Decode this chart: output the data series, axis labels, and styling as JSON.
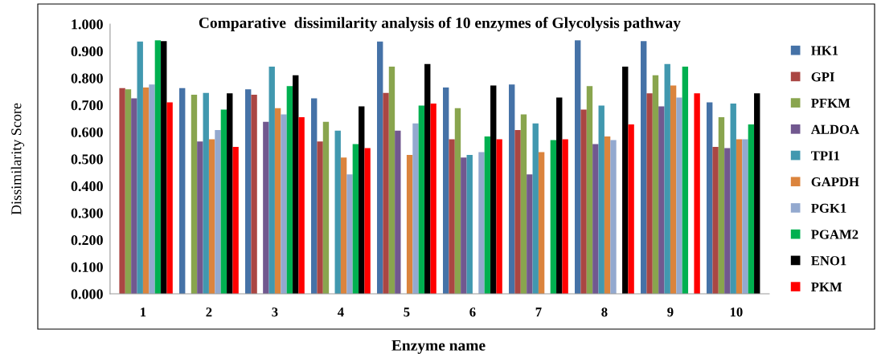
{
  "chart_data": {
    "type": "bar",
    "title": "Comparative  dissimilarity analysis of 10 enzymes of Glycolysis pathway",
    "xlabel": "Enzyme name",
    "ylabel": "Dissimilarity Score",
    "categories": [
      "1",
      "2",
      "3",
      "4",
      "5",
      "6",
      "7",
      "8",
      "9",
      "10"
    ],
    "series": [
      {
        "name": "HK1",
        "color": "#4572a7",
        "values": [
          null,
          0.763,
          0.758,
          0.725,
          0.935,
          0.765,
          0.776,
          0.94,
          0.937,
          0.71
        ]
      },
      {
        "name": "GPI",
        "color": "#aa4643",
        "values": [
          0.763,
          null,
          0.738,
          0.565,
          0.745,
          0.573,
          0.607,
          0.683,
          0.743,
          0.545
        ]
      },
      {
        "name": "PFKM",
        "color": "#89a54e",
        "values": [
          0.758,
          0.738,
          null,
          0.638,
          0.842,
          0.688,
          0.665,
          0.77,
          0.81,
          0.655
        ]
      },
      {
        "name": "ALDOA",
        "color": "#71588f",
        "values": [
          0.725,
          0.565,
          0.638,
          null,
          0.605,
          0.505,
          0.443,
          0.555,
          0.695,
          0.54
        ]
      },
      {
        "name": "TPI1",
        "color": "#4198af",
        "values": [
          0.935,
          0.745,
          0.842,
          0.605,
          null,
          0.515,
          0.632,
          0.698,
          0.852,
          0.705
        ]
      },
      {
        "name": "GAPDH",
        "color": "#db843d",
        "values": [
          0.765,
          0.573,
          0.688,
          0.505,
          0.515,
          null,
          0.525,
          0.583,
          0.772,
          0.573
        ]
      },
      {
        "name": "PGK1",
        "color": "#93a9cf",
        "values": [
          0.776,
          0.607,
          0.665,
          0.443,
          0.632,
          0.525,
          null,
          0.57,
          0.728,
          0.573
        ]
      },
      {
        "name": "PGAM2",
        "color": "#00b050",
        "values": [
          0.94,
          0.683,
          0.77,
          0.555,
          0.698,
          0.583,
          0.57,
          null,
          0.842,
          0.628
        ]
      },
      {
        "name": "ENO1",
        "color": "#000000",
        "values": [
          0.937,
          0.743,
          0.81,
          0.695,
          0.852,
          0.772,
          0.728,
          0.842,
          null,
          0.743
        ]
      },
      {
        "name": "PKM",
        "color": "#ff0000",
        "values": [
          0.71,
          0.545,
          0.655,
          0.54,
          0.705,
          0.573,
          0.573,
          0.628,
          0.743,
          null
        ]
      }
    ],
    "ylim": [
      0,
      1.0
    ],
    "yticks": [
      {
        "value": 0,
        "label": "0.000"
      },
      {
        "value": 0.1,
        "label": "0.100"
      },
      {
        "value": 0.2,
        "label": "0.200"
      },
      {
        "value": 0.3,
        "label": "0.300"
      },
      {
        "value": 0.4,
        "label": "0.400"
      },
      {
        "value": 0.5,
        "label": "0.500"
      },
      {
        "value": 0.6,
        "label": "0.600"
      },
      {
        "value": 0.7,
        "label": "0.700"
      },
      {
        "value": 0.8,
        "label": "0.800"
      },
      {
        "value": 0.9,
        "label": "0.900"
      },
      {
        "value": 1.0,
        "label": "1.000"
      }
    ],
    "grid": false,
    "legend": "right"
  }
}
